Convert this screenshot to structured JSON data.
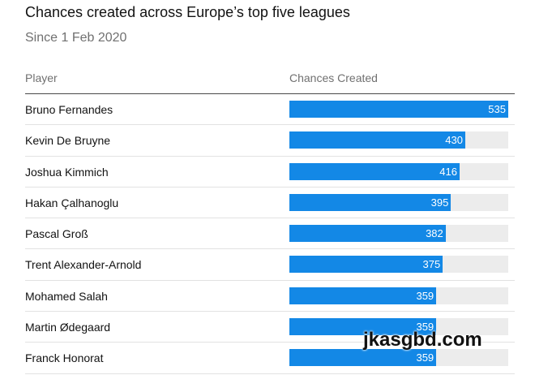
{
  "header": {
    "title": "Chances created across Europe’s top five leagues",
    "subtitle": "Since 1 Feb 2020"
  },
  "columns": {
    "player": "Player",
    "value": "Chances Created"
  },
  "colors": {
    "bar": "#1388e6",
    "track": "#ececec"
  },
  "watermark": "jkasgbd.com",
  "chart_data": {
    "type": "bar",
    "title": "Chances created across Europe’s top five leagues",
    "subtitle": "Since 1 Feb 2020",
    "orientation": "horizontal",
    "categories": [
      "Bruno Fernandes",
      "Kevin De Bruyne",
      "Joshua Kimmich",
      "Hakan Çalhanoglu",
      "Pascal Groß",
      "Trent Alexander-Arnold",
      "Mohamed Salah",
      "Martin Ødegaard",
      "Franck Honorat"
    ],
    "series": [
      {
        "name": "Chances Created",
        "values": [
          535,
          430,
          416,
          395,
          382,
          375,
          359,
          359,
          359
        ]
      }
    ],
    "xlim": [
      0,
      535
    ],
    "grid": false,
    "legend": "none"
  }
}
